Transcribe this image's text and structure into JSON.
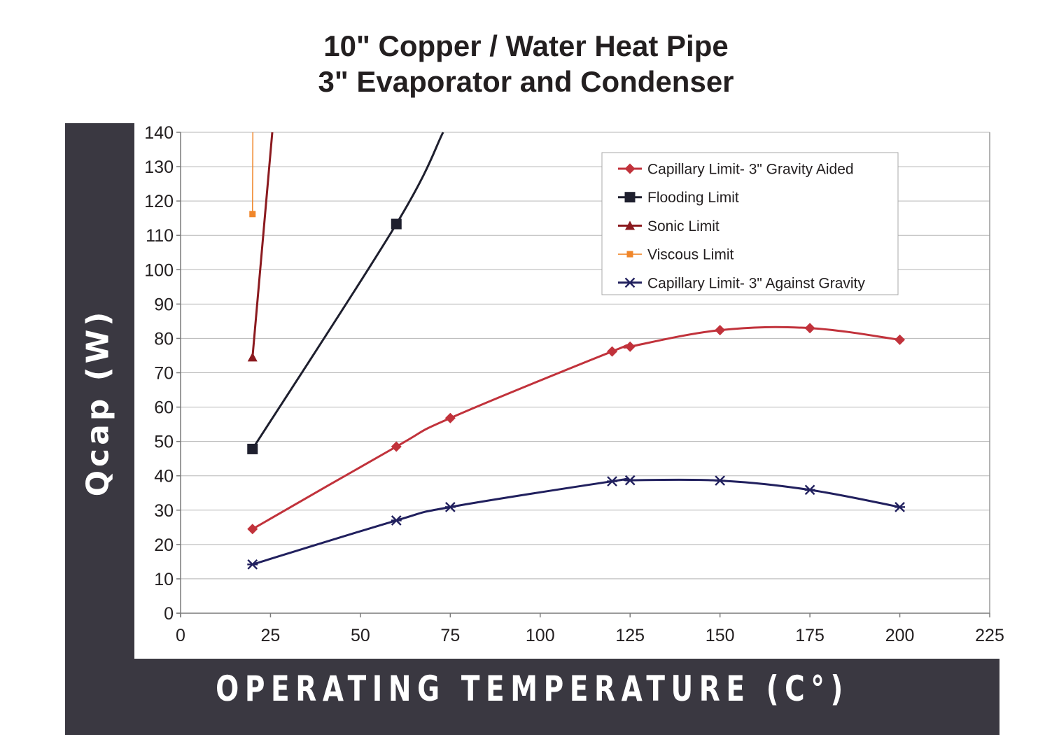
{
  "chart_data": {
    "type": "line",
    "title": "10\" Copper / Water Heat Pipe",
    "subtitle": "3\" Evaporator and Condenser",
    "xlabel": "OPERATING TEMPERATURE (C°)",
    "ylabel": "Qcap (W)",
    "xlim": [
      0,
      225
    ],
    "ylim": [
      0,
      140
    ],
    "xticks": [
      0,
      25,
      50,
      75,
      100,
      125,
      150,
      175,
      200,
      225
    ],
    "yticks": [
      0,
      10,
      20,
      30,
      40,
      50,
      60,
      70,
      80,
      90,
      100,
      110,
      120,
      130,
      140
    ],
    "grid": "horizontal",
    "legend_position": "top-right",
    "series": [
      {
        "name": "Capillary Limit- 3\" Gravity Aided",
        "color": "#c1323b",
        "marker": "diamond",
        "x": [
          20,
          60,
          75,
          120,
          125,
          150,
          175,
          200
        ],
        "y": [
          24.5,
          48.5,
          56.8,
          76.2,
          77.6,
          82.4,
          83,
          79.6
        ]
      },
      {
        "name": "Flooding Limit",
        "color": "#1e1f2e",
        "marker": "square",
        "x": [
          20,
          60,
          73
        ],
        "y": [
          47.8,
          113.3,
          140
        ]
      },
      {
        "name": "Sonic Limit",
        "color": "#8b1a1f",
        "marker": "triangle",
        "x": [
          20,
          25.5
        ],
        "y": [
          74.5,
          140
        ]
      },
      {
        "name": "Viscous Limit",
        "color": "#f0862a",
        "marker": "small-square",
        "x": [
          20,
          20.1
        ],
        "y": [
          116.2,
          140
        ]
      },
      {
        "name": "Capillary Limit- 3\" Against Gravity",
        "color": "#21205e",
        "marker": "asterisk",
        "x": [
          20,
          60,
          75,
          120,
          125,
          150,
          175,
          200
        ],
        "y": [
          14.2,
          27,
          30.9,
          38.4,
          38.7,
          38.6,
          35.9,
          30.9
        ]
      }
    ],
    "marker_points": {
      "Capillary Limit- 3\" Gravity Aided": [
        0,
        1,
        2,
        3,
        4,
        5,
        6,
        7
      ],
      "Flooding Limit": [
        0,
        1
      ],
      "Sonic Limit": [
        0
      ],
      "Viscous Limit": [
        0
      ],
      "Capillary Limit- 3\" Against Gravity": [
        0,
        1,
        2,
        3,
        4,
        5,
        6,
        7
      ]
    }
  }
}
